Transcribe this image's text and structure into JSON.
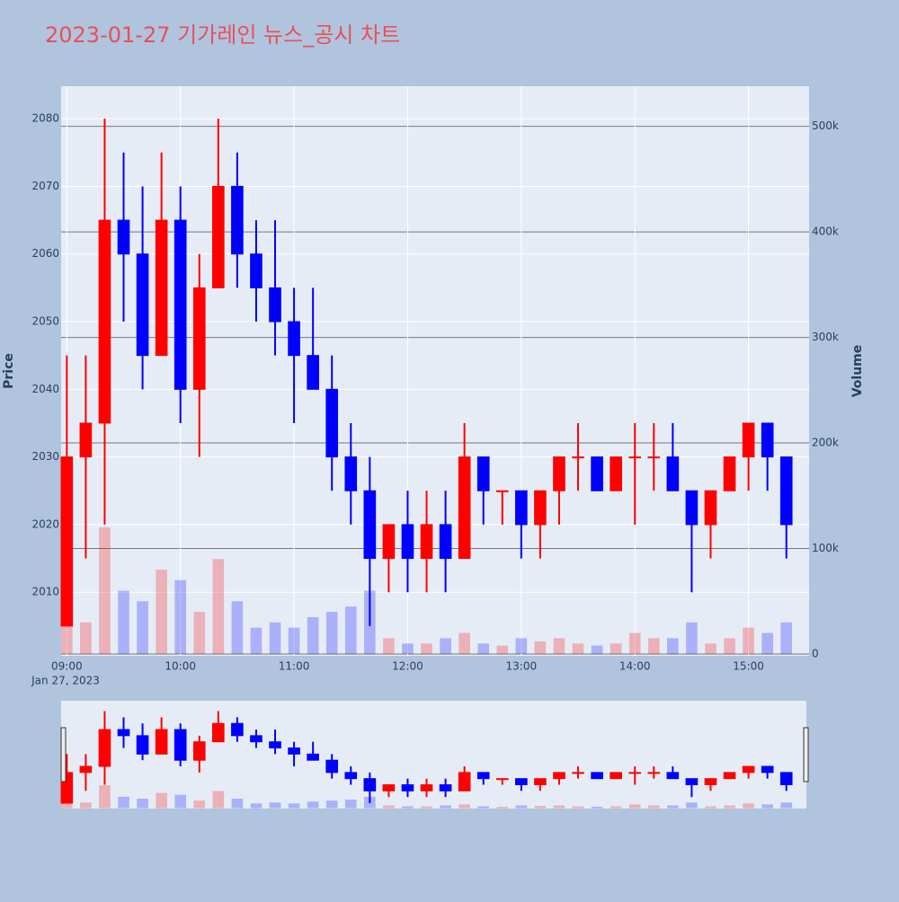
{
  "chart_data": {
    "type": "candlestick",
    "title": "2023-01-27 기가레인 뉴스_공시 차트",
    "y_label": "Price",
    "y2_label": "Volume",
    "x_date_label": "Jan 27, 2023",
    "x": [
      "09:00",
      "09:10",
      "09:20",
      "09:30",
      "09:40",
      "09:50",
      "10:00",
      "10:10",
      "10:20",
      "10:30",
      "10:40",
      "10:50",
      "11:00",
      "11:10",
      "11:20",
      "11:30",
      "11:40",
      "11:50",
      "12:00",
      "12:10",
      "12:20",
      "12:30",
      "12:40",
      "12:50",
      "13:00",
      "13:10",
      "13:20",
      "13:30",
      "13:40",
      "13:50",
      "14:00",
      "14:10",
      "14:20",
      "14:30",
      "14:40",
      "14:50",
      "15:00",
      "15:10",
      "15:20"
    ],
    "open": [
      2005,
      2030,
      2035,
      2065,
      2060,
      2045,
      2065,
      2040,
      2055,
      2070,
      2060,
      2055,
      2050,
      2045,
      2040,
      2030,
      2025,
      2015,
      2020,
      2015,
      2020,
      2015,
      2030,
      2025,
      2025,
      2020,
      2025,
      2030,
      2030,
      2025,
      2030,
      2030,
      2030,
      2025,
      2020,
      2025,
      2030,
      2035,
      2030
    ],
    "high": [
      2045,
      2045,
      2080,
      2075,
      2070,
      2075,
      2070,
      2060,
      2080,
      2075,
      2065,
      2065,
      2055,
      2055,
      2045,
      2035,
      2030,
      2020,
      2025,
      2025,
      2025,
      2035,
      2030,
      2025,
      2025,
      2025,
      2030,
      2035,
      2030,
      2030,
      2035,
      2035,
      2035,
      2025,
      2025,
      2030,
      2035,
      2035,
      2030
    ],
    "low": [
      2005,
      2015,
      2020,
      2050,
      2040,
      2045,
      2035,
      2030,
      2055,
      2055,
      2050,
      2045,
      2035,
      2040,
      2025,
      2020,
      2005,
      2010,
      2010,
      2010,
      2010,
      2015,
      2020,
      2020,
      2015,
      2015,
      2020,
      2025,
      2025,
      2025,
      2020,
      2025,
      2025,
      2010,
      2015,
      2025,
      2025,
      2025,
      2015
    ],
    "close": [
      2030,
      2035,
      2065,
      2060,
      2045,
      2065,
      2040,
      2055,
      2070,
      2060,
      2055,
      2050,
      2045,
      2040,
      2030,
      2025,
      2015,
      2020,
      2015,
      2020,
      2015,
      2030,
      2025,
      2025,
      2020,
      2025,
      2030,
      2030,
      2025,
      2030,
      2030,
      2030,
      2025,
      2020,
      2025,
      2030,
      2035,
      2030,
      2020
    ],
    "volume": [
      40000,
      30000,
      120000,
      60000,
      50000,
      80000,
      70000,
      40000,
      90000,
      50000,
      25000,
      30000,
      25000,
      35000,
      40000,
      45000,
      60000,
      15000,
      10000,
      10000,
      15000,
      20000,
      10000,
      8000,
      15000,
      12000,
      15000,
      10000,
      8000,
      10000,
      20000,
      15000,
      15000,
      30000,
      10000,
      15000,
      25000,
      20000,
      30000
    ],
    "increasing_color": "#ff0000",
    "decreasing_color": "#0000ff",
    "xlim": [
      "08:57",
      "15:32"
    ],
    "xticks": [
      "09:00",
      "10:00",
      "11:00",
      "12:00",
      "13:00",
      "14:00",
      "15:00"
    ],
    "ylim": [
      2000.6,
      2084.8
    ],
    "yticks": [
      2010,
      2020,
      2030,
      2040,
      2050,
      2060,
      2070,
      2080
    ],
    "y2lim": [
      -1700,
      538000
    ],
    "y2ticks": [
      0,
      {
        "value": 100000,
        "label": "100k"
      },
      {
        "value": 200000,
        "label": "200k"
      },
      {
        "value": 300000,
        "label": "300k"
      },
      {
        "value": 400000,
        "label": "400k"
      },
      {
        "value": 500000,
        "label": "500k"
      }
    ],
    "grid": true,
    "rangeslider": true
  }
}
